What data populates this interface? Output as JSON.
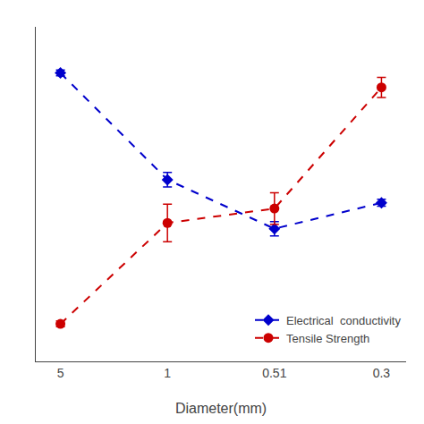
{
  "chart_data": {
    "type": "line",
    "x_label": "Diameter(mm)",
    "categories": [
      "5",
      "1",
      "0.51",
      "0.3"
    ],
    "series": [
      {
        "name": "Electrical  conductivity",
        "color": "#0000cc",
        "marker": "diamond",
        "line_style": "dashed",
        "values": [
          0.92,
          0.55,
          0.38,
          0.47
        ],
        "yerr": [
          0.01,
          0.025,
          0.025,
          0.012
        ]
      },
      {
        "name": "Tensile Strength",
        "color": "#cc0000",
        "marker": "circle",
        "line_style": "dashed",
        "values": [
          0.05,
          0.4,
          0.45,
          0.87
        ],
        "yerr": [
          0.01,
          0.065,
          0.055,
          0.035
        ]
      }
    ],
    "ylim": [
      -0.08,
      1.08
    ],
    "grid": false,
    "legend": "lower right",
    "tick_labels": "x"
  }
}
